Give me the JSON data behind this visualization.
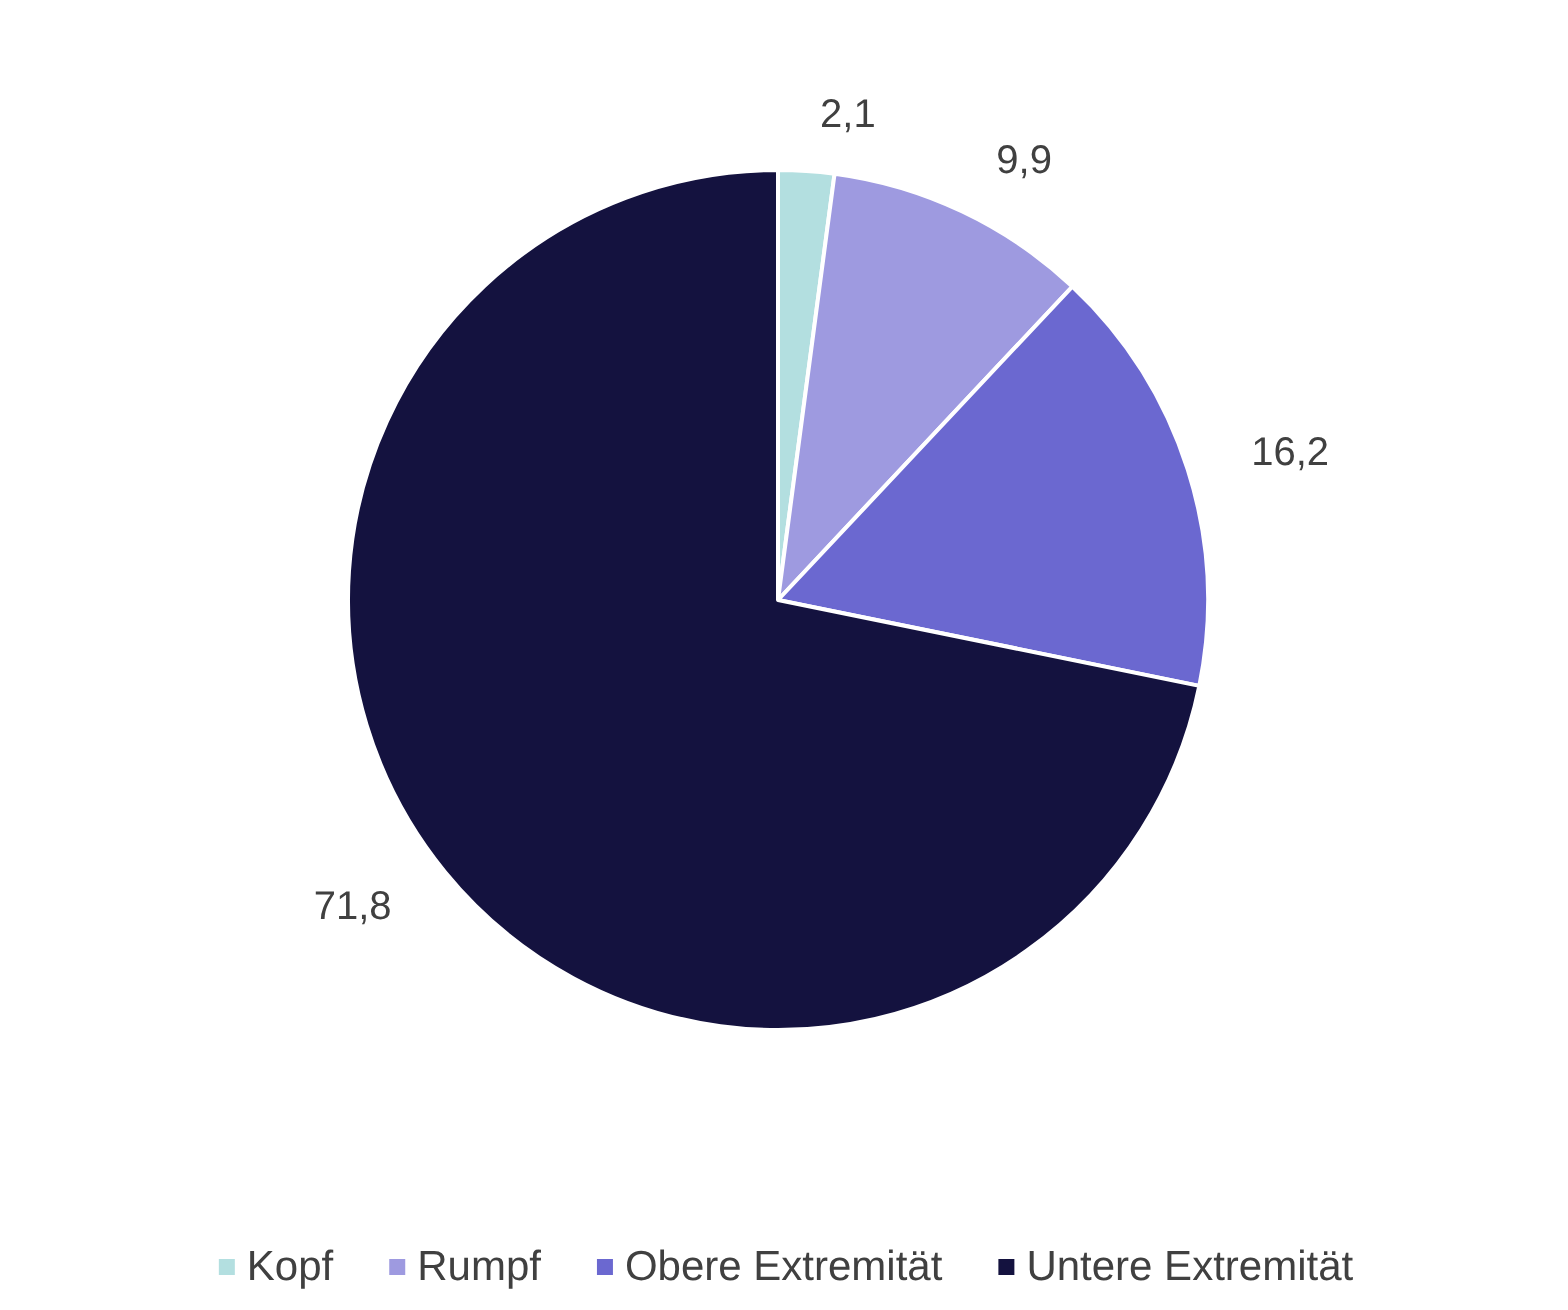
{
  "chart_data": {
    "type": "pie",
    "categories": [
      "Kopf",
      "Rumpf",
      "Obere Extremität",
      "Untere Extremität"
    ],
    "values": [
      2.1,
      9.9,
      16.2,
      71.8
    ],
    "colors": [
      "#b3dfe0",
      "#9e9ae0",
      "#6b68d0",
      "#14123f"
    ],
    "value_labels": [
      "2,1",
      "9,9",
      "16,2",
      "71,8"
    ],
    "legend": "bottom"
  }
}
